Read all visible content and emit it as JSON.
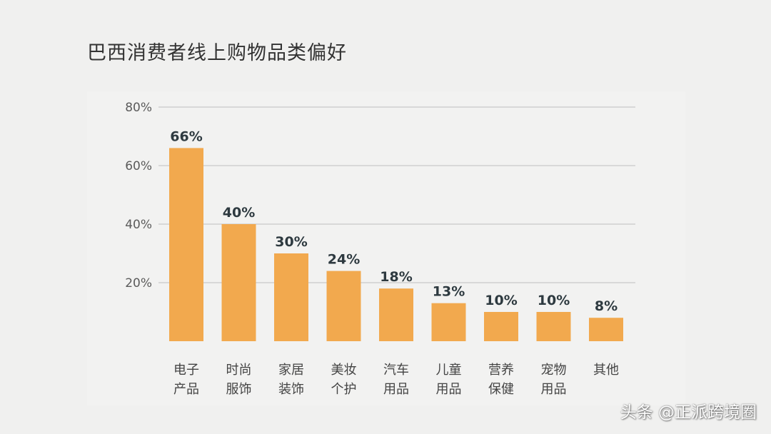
{
  "title": "巴西消费者线上购物品类偏好",
  "watermark": "头条 @正派跨境圈",
  "colors": {
    "bar": "#f2a94e",
    "grid": "#cfcfcf",
    "tick_text": "#5b5b5b",
    "value_text": "#2e3a40",
    "category_text": "#444444"
  },
  "chart_data": {
    "type": "bar",
    "categories": [
      [
        "电子",
        "产品"
      ],
      [
        "时尚",
        "服饰"
      ],
      [
        "家居",
        "装饰"
      ],
      [
        "美妆",
        "个护"
      ],
      [
        "汽车",
        "用品"
      ],
      [
        "儿童",
        "用品"
      ],
      [
        "营养",
        "保健"
      ],
      [
        "宠物",
        "用品"
      ],
      [
        "其他"
      ]
    ],
    "values": [
      66,
      40,
      30,
      24,
      18,
      13,
      10,
      10,
      8
    ],
    "value_labels": [
      "66%",
      "40%",
      "30%",
      "24%",
      "18%",
      "13%",
      "10%",
      "10%",
      "8%"
    ],
    "ylim": [
      0,
      80
    ],
    "yticks": [
      20,
      40,
      60,
      80
    ],
    "ytick_labels": [
      "20%",
      "40%",
      "60%",
      "80%"
    ],
    "grid": true,
    "legend": "none"
  }
}
